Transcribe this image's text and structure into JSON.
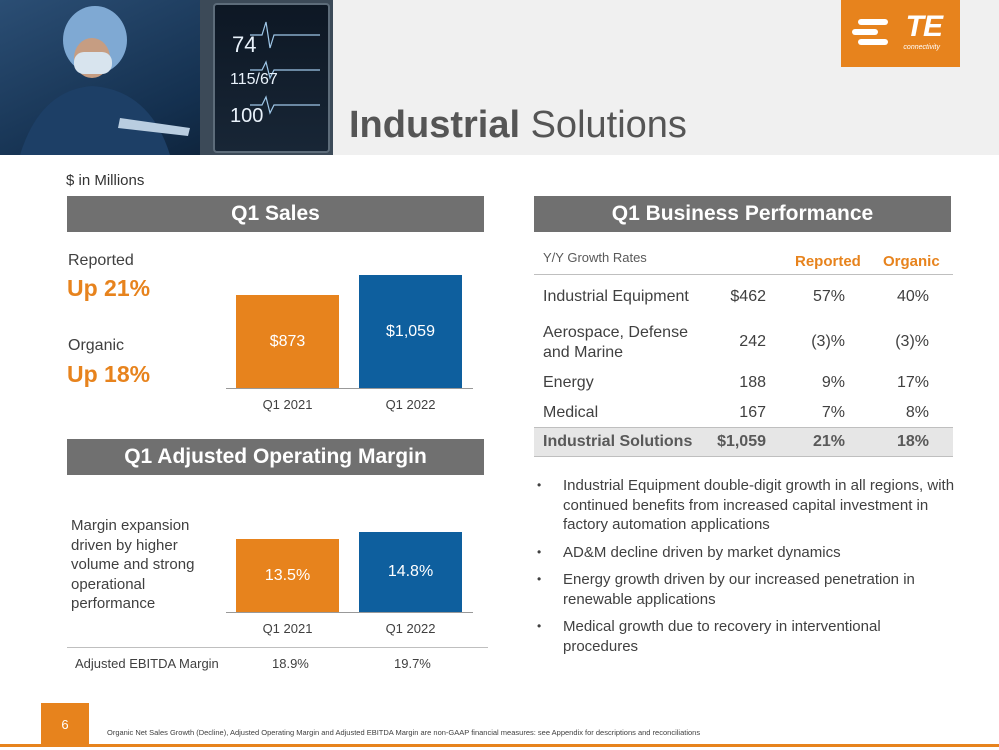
{
  "brand": {
    "logo_text": "TE",
    "logo_subtext": "connectivity",
    "accent_color": "#e7831d",
    "blue_color": "#0e5f9e",
    "header_gray": "#707070"
  },
  "hero_monitor": {
    "readout_1": "74",
    "readout_2": "115/67",
    "readout_3": "100"
  },
  "title": {
    "bold": "Industrial",
    "regular": " Solutions"
  },
  "units_label": "$ in Millions",
  "q1_sales": {
    "header": "Q1 Sales",
    "reported_label": "Reported",
    "reported_value": "Up 21%",
    "organic_label": "Organic",
    "organic_value": "Up 18%"
  },
  "margin_panel": {
    "header": "Q1 Adjusted Operating Margin",
    "note": "Margin expansion driven by higher volume and strong operational performance",
    "ebitda_label": "Adjusted EBITDA Margin",
    "ebitda_2021": "18.9%",
    "ebitda_2022": "19.7%"
  },
  "performance": {
    "header": "Q1 Business Performance",
    "col_label": "Y/Y Growth Rates",
    "col_reported": "Reported",
    "col_organic": "Organic",
    "rows": [
      {
        "segment": "Industrial Equipment",
        "sales": "$462",
        "reported": "57%",
        "organic": "40%"
      },
      {
        "segment": "Aerospace, Defense and Marine",
        "sales": "242",
        "reported": "(3)%",
        "organic": "(3)%"
      },
      {
        "segment": "Energy",
        "sales": "188",
        "reported": "9%",
        "organic": "17%"
      },
      {
        "segment": "Medical",
        "sales": "167",
        "reported": "7%",
        "organic": "8%"
      }
    ],
    "total": {
      "segment": "Industrial Solutions",
      "sales": "$1,059",
      "reported": "21%",
      "organic": "18%"
    }
  },
  "bullets": [
    "Industrial Equipment double-digit growth in all regions, with continued benefits from increased capital investment in factory automation applications",
    "AD&M decline driven by market dynamics",
    "Energy growth driven by our increased penetration in renewable applications",
    "Medical growth due to recovery in interventional procedures"
  ],
  "footer": {
    "page_number": "6",
    "footnote": "Organic Net Sales Growth (Decline), Adjusted Operating Margin and Adjusted EBITDA Margin are non-GAAP financial measures: see Appendix for descriptions and reconciliations"
  },
  "chart_data": [
    {
      "type": "bar",
      "categories": [
        "Q1 2021",
        "Q1 2022"
      ],
      "values": [
        873,
        1059
      ],
      "data_labels": [
        "$873",
        "$1,059"
      ],
      "colors": [
        "#e7831d",
        "#0e5f9e"
      ],
      "title": "",
      "xlabel": "",
      "ylabel": "",
      "ylim": [
        0,
        1100
      ],
      "grid": false
    },
    {
      "type": "bar",
      "categories": [
        "Q1 2021",
        "Q1 2022"
      ],
      "values": [
        13.5,
        14.8
      ],
      "data_labels": [
        "13.5%",
        "14.8%"
      ],
      "colors": [
        "#e7831d",
        "#0e5f9e"
      ],
      "title": "",
      "xlabel": "",
      "ylabel": "",
      "ylim": [
        0,
        16
      ],
      "grid": false
    }
  ]
}
